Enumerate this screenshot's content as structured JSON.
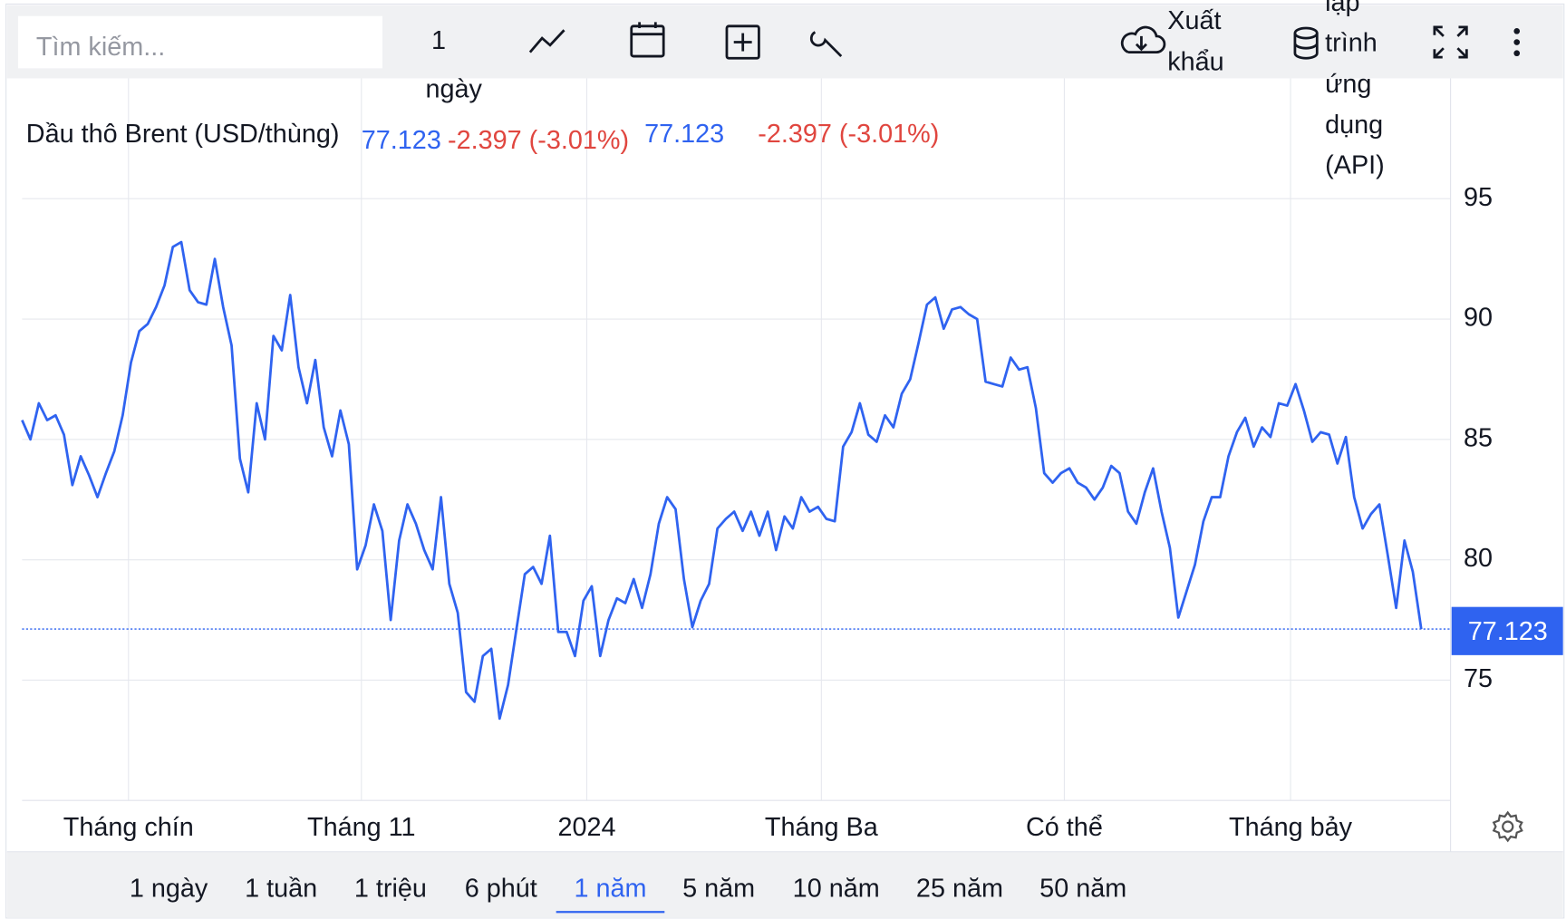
{
  "toolbar": {
    "search_placeholder": "Tìm kiếm...",
    "interval": [
      "1",
      "ngày"
    ],
    "export": [
      "Xuất",
      "khẩu"
    ],
    "api": [
      "lập",
      "trình",
      "ứng",
      "dụng",
      "(API)"
    ]
  },
  "legend": {
    "change": "-2.397 (-3.01%)"
  },
  "chart_data": {
    "type": "line",
    "series": [
      {
        "name": "Dầu thô Brent (USD/thùng)",
        "color": "#2f63f0",
        "values": [
          85.8,
          85.0,
          86.5,
          85.8,
          86.0,
          85.2,
          83.1,
          84.3,
          83.5,
          82.6,
          83.6,
          84.5,
          86.0,
          88.2,
          89.5,
          89.8,
          90.5,
          91.4,
          93.0,
          93.2,
          91.2,
          90.7,
          90.6,
          92.5,
          90.5,
          88.9,
          84.2,
          82.8,
          86.5,
          85.0,
          89.3,
          88.7,
          91.0,
          88.0,
          86.5,
          88.3,
          85.5,
          84.3,
          86.2,
          84.8,
          79.6,
          80.6,
          82.3,
          81.2,
          77.5,
          80.8,
          82.3,
          81.5,
          80.4,
          79.6,
          82.6,
          79.0,
          77.8,
          74.5,
          74.1,
          76.0,
          76.3,
          73.4,
          74.8,
          77.1,
          79.4,
          79.7,
          79.0,
          81.0,
          77.0,
          77.0,
          76.0,
          78.3,
          78.9,
          76.0,
          77.5,
          78.4,
          78.2,
          79.2,
          78.0,
          79.4,
          81.5,
          82.6,
          82.1,
          79.2,
          77.2,
          78.3,
          79.0,
          81.3,
          81.7,
          82.0,
          81.2,
          82.0,
          81.0,
          82.0,
          80.4,
          81.8,
          81.3,
          82.6,
          82.0,
          82.2,
          81.7,
          81.6,
          84.7,
          85.3,
          86.5,
          85.2,
          84.9,
          86.0,
          85.5,
          86.9,
          87.5,
          89.0,
          90.6,
          90.9,
          89.6,
          90.4,
          90.5,
          90.2,
          90.0,
          87.4,
          87.3,
          87.2,
          88.4,
          87.9,
          88.0,
          86.3,
          83.6,
          83.2,
          83.6,
          83.8,
          83.2,
          83.0,
          82.5,
          83.0,
          83.9,
          83.6,
          82.0,
          81.5,
          82.8,
          83.8,
          82.0,
          80.5,
          77.6,
          78.7,
          79.8,
          81.6,
          82.6,
          82.6,
          84.3,
          85.3,
          85.9,
          84.7,
          85.5,
          85.1,
          86.5,
          86.4,
          87.3,
          86.2,
          84.9,
          85.3,
          85.2,
          84.0,
          85.1,
          82.6,
          81.3,
          81.9,
          82.3,
          80.2,
          78.0,
          80.8,
          79.5,
          77.123
        ]
      }
    ],
    "xlim": [
      0,
      170.5
    ],
    "xticks": [
      {
        "value": 12.7,
        "label": "Tháng chín"
      },
      {
        "value": 40.5,
        "label": "Tháng 11"
      },
      {
        "value": 67.4,
        "label": "2024"
      },
      {
        "value": 95.4,
        "label": "Tháng Ba"
      },
      {
        "value": 124.4,
        "label": "Có thể"
      },
      {
        "value": 151.4,
        "label": "Tháng bảy"
      }
    ],
    "ylim": [
      70,
      100
    ],
    "yticks": [
      75,
      80,
      85,
      90,
      95
    ],
    "grid": true
  },
  "ranges": {
    "options": [
      "1 ngày",
      "1 tuần",
      "1 triệu",
      "6 phút",
      "1 năm",
      "5 năm",
      "10 năm",
      "25 năm",
      "50 năm"
    ],
    "selected": 4
  }
}
